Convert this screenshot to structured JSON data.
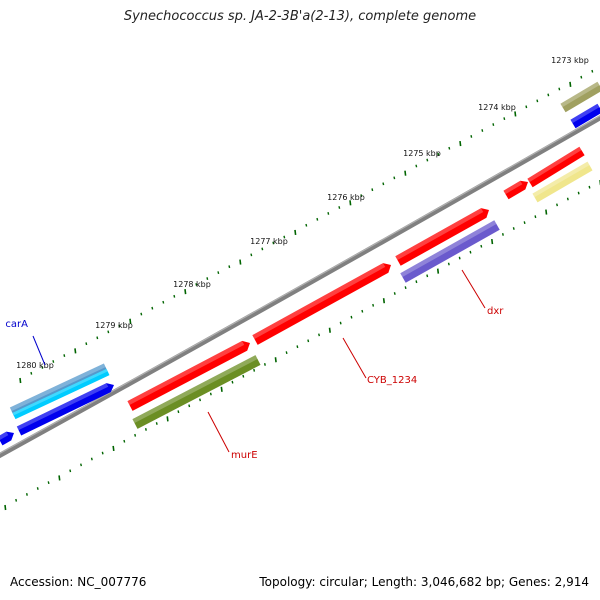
{
  "title": "Synechococcus sp. JA-2-3B'a(2-13), complete genome",
  "footer": {
    "accession": "Accession: NC_007776",
    "stats": "Topology: circular; Length: 3,046,682 bp; Genes: 2,914"
  },
  "scale_labels": [
    "1273 kbp",
    "1274 kbp",
    "1275 kbp",
    "1276 kbp",
    "1277 kbp",
    "1278 kbp",
    "1279 kbp",
    "1280 kbp"
  ],
  "gene_labels": [
    {
      "text": "carA",
      "color": "#0000cc"
    },
    {
      "text": "CYB_1234",
      "color": "#cc0000"
    },
    {
      "text": "murE",
      "color": "#cc0000"
    },
    {
      "text": "dxr",
      "color": "#cc0000"
    }
  ],
  "colors": {
    "red": "#ff0000",
    "blue": "#0000ee",
    "cyan": "#00ccff",
    "steel": "#5599cc",
    "olive": "#6b8e23",
    "purple": "#6a5acd",
    "khaki": "#a0a060",
    "pale": "#f0e68c",
    "backbone": "#808080",
    "ticks": "#006400"
  }
}
